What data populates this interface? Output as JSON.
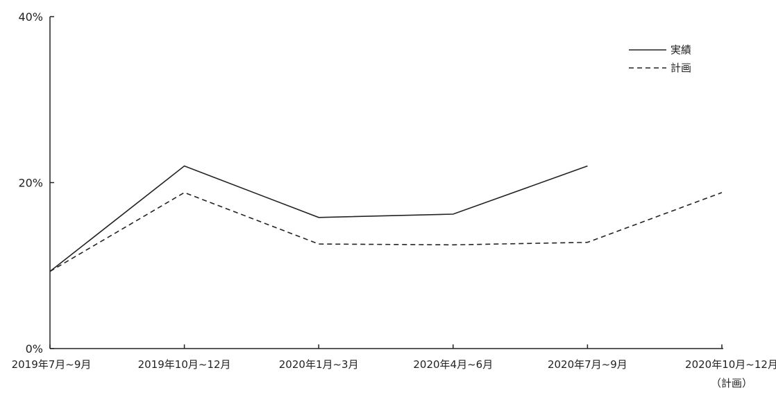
{
  "chart_data": {
    "type": "line",
    "categories": [
      "2019年7月~9月",
      "2019年10月~12月",
      "2020年1月~3月",
      "2020年4月~6月",
      "2020年7月~9月",
      "2020年10月~12月"
    ],
    "category_sublabels": [
      "",
      "",
      "",
      "",
      "",
      "（計画）"
    ],
    "series": [
      {
        "name": "実績",
        "values": [
          9.3,
          22.0,
          15.8,
          16.2,
          22.0,
          null
        ],
        "style": "solid",
        "color": "#222222"
      },
      {
        "name": "計画",
        "values": [
          9.3,
          18.8,
          12.6,
          12.5,
          12.8,
          18.8
        ],
        "style": "dashed",
        "color": "#222222"
      }
    ],
    "yticks": [
      "0%",
      "20%",
      "40%"
    ],
    "ytick_values": [
      0,
      20,
      40
    ],
    "ylim": [
      0,
      40
    ],
    "grid": false,
    "legend_position": "top-right"
  }
}
